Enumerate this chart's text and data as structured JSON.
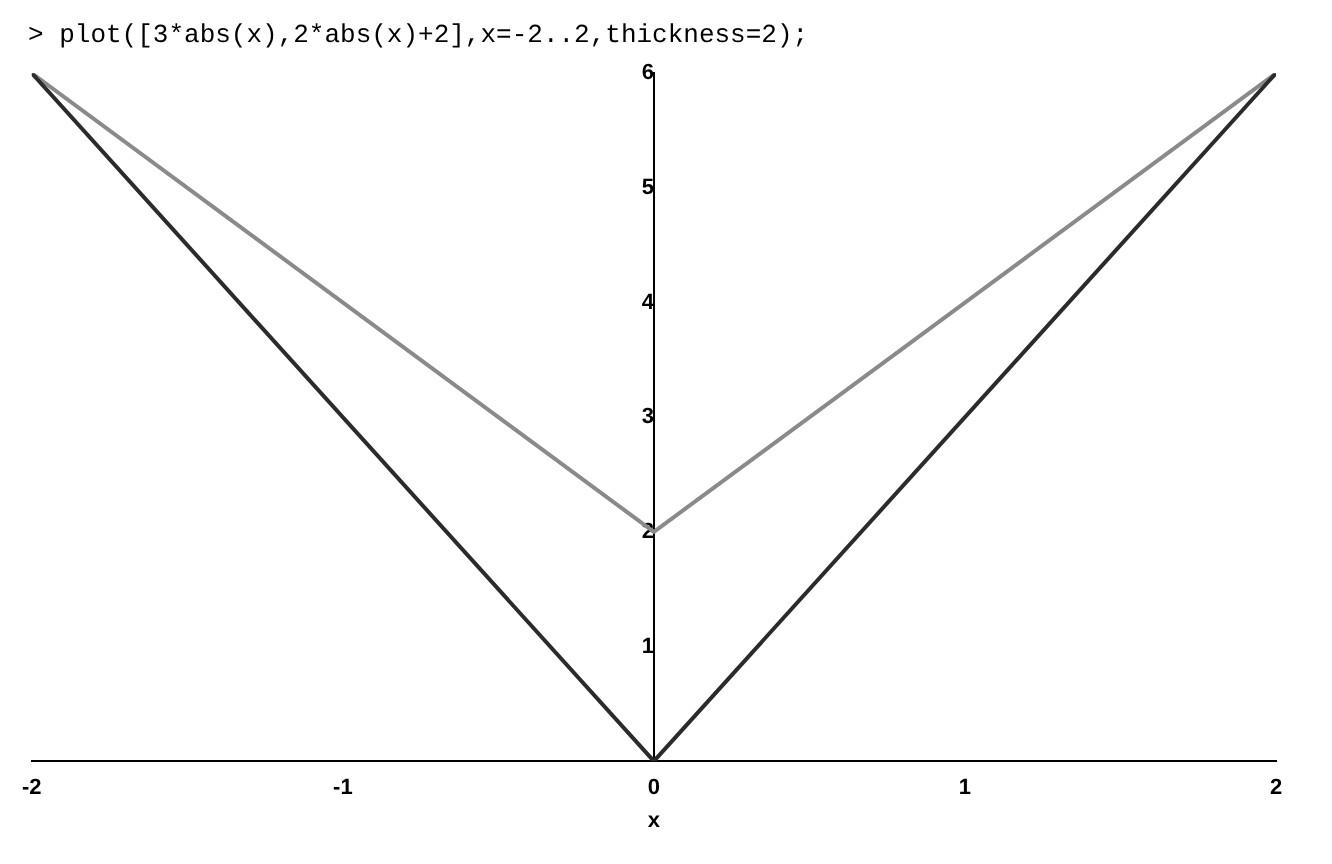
{
  "chart_data": {
    "type": "line",
    "title": "> plot([3*abs(x),2*abs(x)+2],x=-2..2,thickness=2);",
    "xlabel": "x",
    "x": [
      -2,
      0,
      2
    ],
    "series": [
      {
        "color": "#2b2b2b",
        "values": [
          6,
          0,
          6
        ]
      },
      {
        "color": "#8a8a8a",
        "values": [
          6,
          2,
          6
        ]
      }
    ],
    "xlim": [
      -2,
      2
    ],
    "xticks": [
      -2,
      -1,
      0,
      1,
      2
    ],
    "ylim": [
      0,
      6
    ],
    "yticks": [
      1,
      2,
      3,
      4,
      5,
      6
    ],
    "marker": "none",
    "line_style": "solid"
  }
}
